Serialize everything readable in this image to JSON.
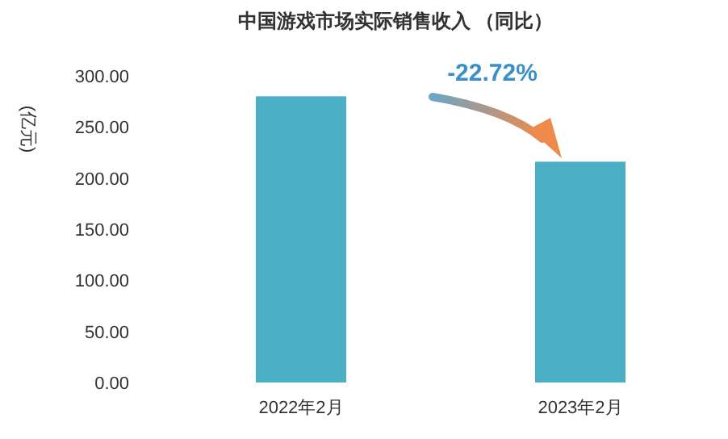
{
  "chart_data": {
    "type": "bar",
    "title": "中国游戏市场实际销售收入 （同比）",
    "ylabel": "(亿元)",
    "categories": [
      "2022年2月",
      "2023年2月"
    ],
    "values": [
      280,
      216
    ],
    "color": "#4aaec4",
    "ylim": [
      0,
      300
    ],
    "yticks": [
      {
        "value": 0,
        "label": "0.00"
      },
      {
        "value": 50,
        "label": "50.00"
      },
      {
        "value": 100,
        "label": "100.00"
      },
      {
        "value": 150,
        "label": "150.00"
      },
      {
        "value": 200,
        "label": "200.00"
      },
      {
        "value": 250,
        "label": "250.00"
      },
      {
        "value": 300,
        "label": "300.00"
      }
    ],
    "grid": false,
    "annotations": [
      "-22.72%"
    ]
  }
}
